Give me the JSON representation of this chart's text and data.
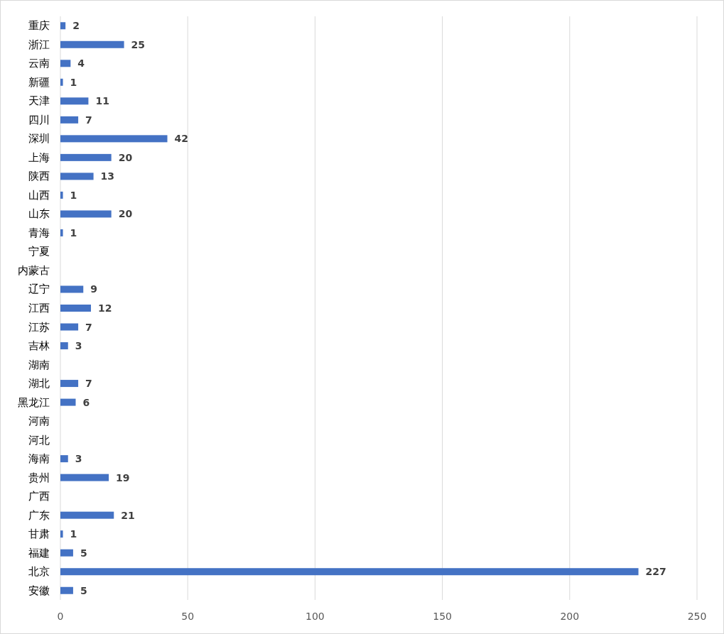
{
  "chart_data": {
    "type": "bar",
    "orientation": "horizontal",
    "categories": [
      "重庆",
      "浙江",
      "云南",
      "新疆",
      "天津",
      "四川",
      "深圳",
      "上海",
      "陕西",
      "山西",
      "山东",
      "青海",
      "宁夏",
      "内蒙古",
      "辽宁",
      "江西",
      "江苏",
      "吉林",
      "湖南",
      "湖北",
      "黑龙江",
      "河南",
      "河北",
      "海南",
      "贵州",
      "广西",
      "广东",
      "甘肃",
      "福建",
      "北京",
      "安徽"
    ],
    "values": [
      2,
      25,
      4,
      1,
      11,
      7,
      42,
      20,
      13,
      1,
      20,
      1,
      null,
      null,
      9,
      12,
      7,
      3,
      null,
      7,
      6,
      null,
      null,
      3,
      19,
      null,
      21,
      1,
      5,
      227,
      5
    ],
    "color": "#4472c4",
    "xlim": [
      0,
      250
    ],
    "xticks": [
      0,
      50,
      100,
      150,
      200,
      250
    ],
    "grid": "x",
    "data_labels": true
  }
}
